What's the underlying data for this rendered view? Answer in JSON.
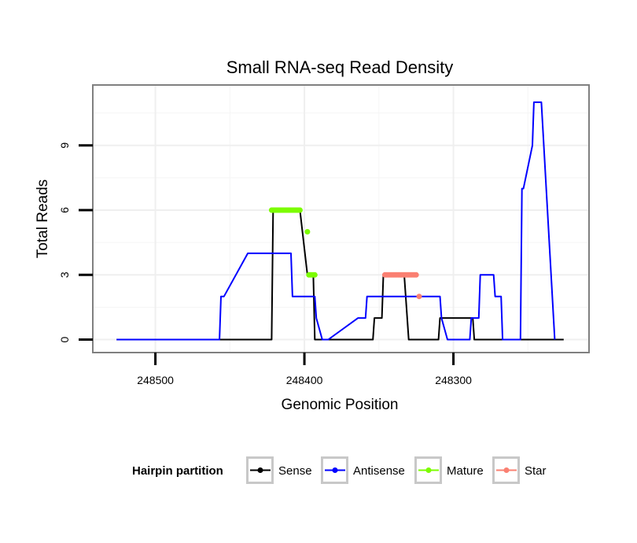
{
  "chart_data": {
    "type": "line",
    "title": "Small RNA-seq Read Density",
    "xlabel": "Genomic Position",
    "ylabel": "Total Reads",
    "x_reversed": true,
    "xlim": [
      248542,
      248209
    ],
    "ylim": [
      -0.6,
      11.8
    ],
    "x_ticks": [
      248500,
      248400,
      248300
    ],
    "x_tick_labels": [
      "248500",
      "248400",
      "248300"
    ],
    "y_ticks": [
      0,
      3,
      6,
      9
    ],
    "y_tick_labels": [
      "0",
      "3",
      "6",
      "9"
    ],
    "grid": true,
    "legend": {
      "title": "Hairpin partition",
      "position": "bottom",
      "entries": [
        {
          "name": "Sense",
          "color": "#000000"
        },
        {
          "name": "Antisense",
          "color": "#0000ff"
        },
        {
          "name": "Mature",
          "color": "#7cfc00"
        },
        {
          "name": "Star",
          "color": "#fa8072"
        }
      ]
    },
    "series": [
      {
        "name": "Sense",
        "color": "#000000",
        "style": "line",
        "x": [
          248526,
          248422,
          248421,
          248419,
          248404,
          248403,
          248398,
          248396,
          248395,
          248394,
          248393,
          248380,
          248379,
          248378,
          248374,
          248373,
          248354,
          248353,
          248352,
          248351,
          248348,
          248347,
          248346,
          248345,
          248344,
          248333,
          248332,
          248330,
          248310,
          248309,
          248308,
          248307,
          248287,
          248286,
          248284,
          248274,
          248226
        ],
        "y": [
          0,
          0,
          6,
          6,
          6,
          6,
          3,
          3,
          3,
          3,
          0,
          0,
          0,
          0,
          0,
          0,
          0,
          1,
          1,
          1,
          1,
          3,
          3,
          3,
          3,
          3,
          2,
          0,
          0,
          1,
          1,
          1,
          1,
          0,
          0,
          0,
          0
        ]
      },
      {
        "name": "Antisense",
        "color": "#0000ff",
        "style": "line",
        "x": [
          248526,
          248457,
          248456,
          248454,
          248438,
          248437,
          248435,
          248431,
          248409,
          248408,
          248393,
          248392,
          248388,
          248385,
          248384,
          248364,
          248363,
          248359,
          248358,
          248355,
          248331,
          248309,
          248308,
          248304,
          248303,
          248289,
          248288,
          248283,
          248282,
          248278,
          248273,
          248272,
          248268,
          248267,
          248255,
          248254,
          248253,
          248247,
          248246,
          248241,
          248232
        ],
        "y": [
          0,
          0,
          2,
          2,
          4,
          4,
          4,
          4,
          4,
          2,
          2,
          1,
          0,
          0,
          0,
          1,
          1,
          1,
          2,
          2,
          2,
          2,
          1,
          0,
          0,
          0,
          1,
          1,
          3,
          3,
          3,
          2,
          2,
          0,
          0,
          7,
          7,
          9,
          11,
          11,
          0
        ]
      },
      {
        "name": "Mature",
        "color": "#7cfc00",
        "style": "points",
        "x": [
          248422,
          248421,
          248420,
          248419,
          248418,
          248417,
          248416,
          248415,
          248414,
          248413,
          248412,
          248411,
          248410,
          248409,
          248408,
          248407,
          248406,
          248405,
          248404,
          248403,
          248398,
          248397,
          248396,
          248395,
          248394,
          248393
        ],
        "y": [
          6,
          6,
          6,
          6,
          6,
          6,
          6,
          6,
          6,
          6,
          6,
          6,
          6,
          6,
          6,
          6,
          6,
          6,
          6,
          6,
          5,
          3,
          3,
          3,
          3,
          3
        ]
      },
      {
        "name": "Star",
        "color": "#fa8072",
        "style": "points",
        "x": [
          248346,
          248345,
          248344,
          248343,
          248342,
          248341,
          248340,
          248339,
          248338,
          248337,
          248336,
          248335,
          248334,
          248333,
          248332,
          248331,
          248330,
          248329,
          248328,
          248327,
          248326,
          248325,
          248323
        ],
        "y": [
          3,
          3,
          3,
          3,
          3,
          3,
          3,
          3,
          3,
          3,
          3,
          3,
          3,
          3,
          3,
          3,
          3,
          3,
          3,
          3,
          3,
          3,
          2
        ]
      }
    ]
  }
}
